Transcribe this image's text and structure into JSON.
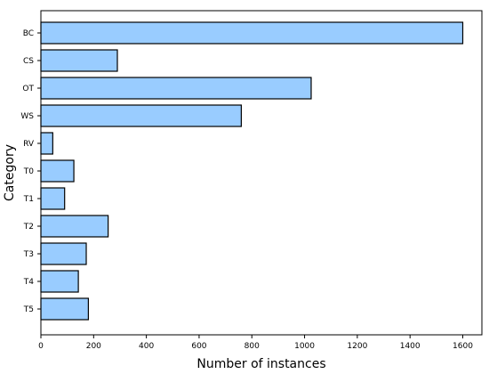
{
  "chart_data": {
    "type": "bar",
    "orientation": "horizontal",
    "categories": [
      "BC",
      "CS",
      "OT",
      "WS",
      "RV",
      "T0",
      "T1",
      "T2",
      "T3",
      "T4",
      "T5"
    ],
    "values": [
      1600,
      290,
      1025,
      760,
      45,
      125,
      90,
      255,
      172,
      142,
      180
    ],
    "xlabel": "Number of instances",
    "ylabel": "Category",
    "xlim": [
      0,
      1680
    ],
    "xticks": [
      0,
      200,
      400,
      600,
      800,
      1000,
      1200,
      1400,
      1600
    ],
    "grid": false,
    "bar_color": "#99ccff",
    "edge_color": "#000000"
  }
}
